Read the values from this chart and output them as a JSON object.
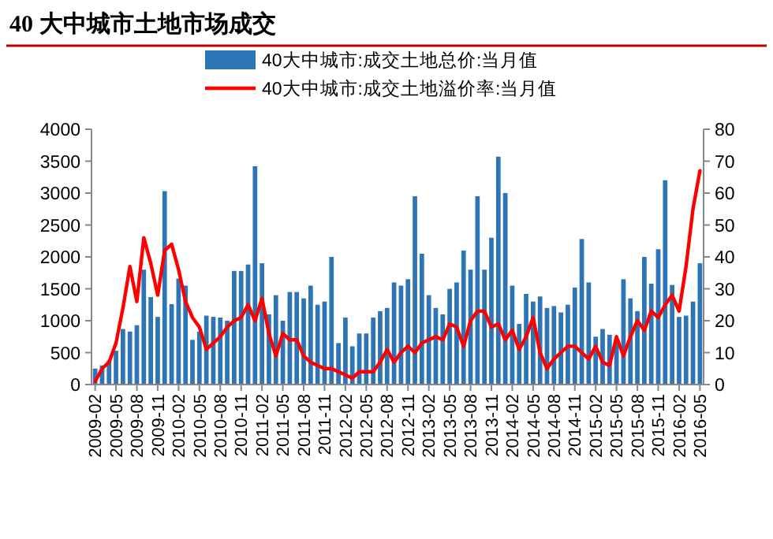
{
  "chart_data": {
    "type": "bar",
    "title": "40 大中城市土地市场成交",
    "categories": [
      "2009-02",
      null,
      null,
      "2009-05",
      null,
      null,
      "2009-08",
      null,
      null,
      "2009-11",
      null,
      null,
      "2010-02",
      null,
      null,
      "2010-05",
      null,
      null,
      "2010-08",
      null,
      null,
      "2010-11",
      null,
      null,
      "2011-02",
      null,
      null,
      "2011-05",
      null,
      null,
      "2011-08",
      null,
      null,
      "2011-11",
      null,
      null,
      "2012-02",
      null,
      null,
      "2012-05",
      null,
      null,
      "2012-08",
      null,
      null,
      "2012-11",
      null,
      null,
      "2013-02",
      null,
      null,
      "2013-05",
      null,
      null,
      "2013-08",
      null,
      null,
      "2013-11",
      null,
      null,
      "2014-02",
      null,
      null,
      "2014-05",
      null,
      null,
      "2014-08",
      null,
      null,
      "2014-11",
      null,
      null,
      "2015-02",
      null,
      null,
      "2015-05",
      null,
      null,
      "2015-08",
      null,
      null,
      "2015-11",
      null,
      null,
      "2016-02",
      null,
      null,
      "2016-05"
    ],
    "series": [
      {
        "name": "40大中城市:成交土地总价:当月值",
        "color": "#2e75b6",
        "values": [
          250,
          300,
          380,
          530,
          870,
          830,
          930,
          1800,
          1370,
          1060,
          3030,
          1260,
          1660,
          1550,
          700,
          830,
          1080,
          1060,
          1050,
          1000,
          1780,
          1780,
          1880,
          3420,
          1900,
          1100,
          1400,
          1000,
          1450,
          1450,
          1350,
          1550,
          1250,
          1300,
          2000,
          650,
          1050,
          600,
          800,
          800,
          1050,
          1150,
          1200,
          1600,
          1550,
          1650,
          2950,
          2050,
          1400,
          1200,
          1100,
          1500,
          1600,
          2100,
          1800,
          2950,
          1800,
          2300,
          3570,
          3000,
          1550,
          950,
          1420,
          1300,
          1380,
          1200,
          1230,
          1130,
          1250,
          1520,
          2280,
          1600,
          750,
          870,
          780,
          700,
          1650,
          1350,
          1150,
          2000,
          1580,
          2120,
          3200,
          1560,
          1060,
          1080,
          1300,
          1900
        ]
      },
      {
        "name": "40大中城市:成交土地溢价率:当月值",
        "type": "line",
        "axis": "y2",
        "color": "#ff0000",
        "values": [
          1,
          5,
          7,
          13,
          24,
          37,
          26,
          46,
          38,
          28,
          42,
          44,
          36,
          26,
          21,
          18,
          11,
          13,
          15,
          18,
          20,
          21,
          25,
          20,
          27,
          16,
          9,
          16,
          14,
          14,
          9,
          7,
          6,
          5,
          5,
          4,
          3,
          2,
          4,
          4,
          4,
          7,
          11,
          7,
          10,
          12,
          10,
          13,
          14,
          15,
          14,
          19,
          18,
          12,
          20,
          23,
          23,
          18,
          19,
          14,
          17,
          11,
          15,
          21,
          10,
          5,
          8,
          10,
          12,
          12,
          10,
          8,
          12,
          7,
          6,
          15,
          9,
          15,
          20,
          17,
          23,
          21,
          25,
          28,
          23,
          37,
          55,
          67
        ]
      }
    ],
    "ylim": [
      0,
      4000
    ],
    "yticks": [
      0,
      500,
      1000,
      1500,
      2000,
      2500,
      3000,
      3500,
      4000
    ],
    "y2lim": [
      0,
      80
    ],
    "y2ticks": [
      0,
      10,
      20,
      30,
      40,
      50,
      60,
      70,
      80
    ],
    "grid": false,
    "legend": "top",
    "line_style": "solid",
    "marker": "none"
  }
}
